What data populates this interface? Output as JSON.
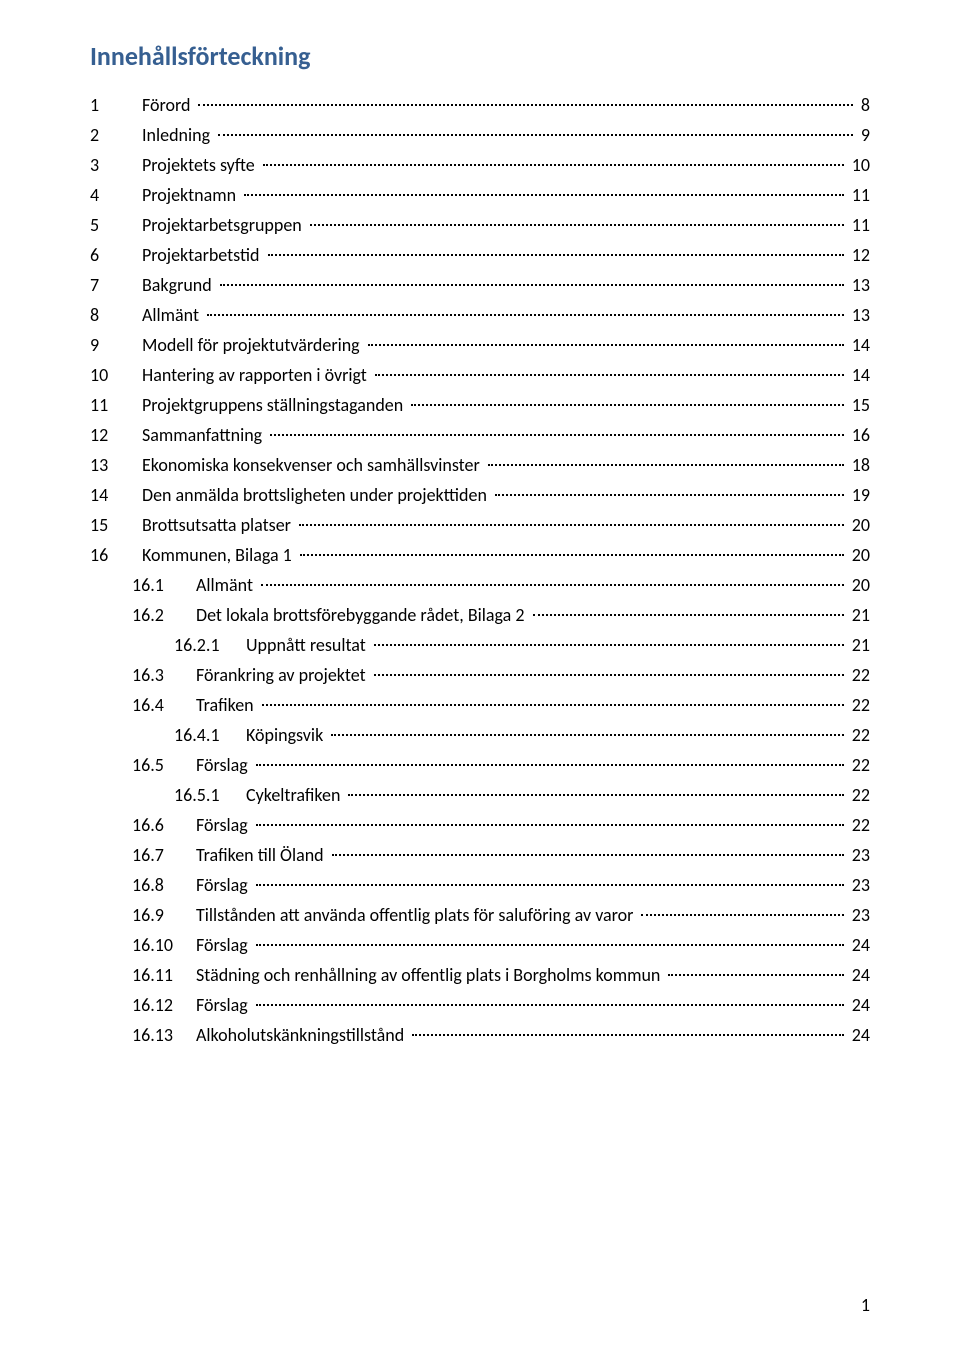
{
  "title": "Innehållsförteckning",
  "page_number": "1",
  "entries": [
    {
      "level": 1,
      "num": "1",
      "label": "Förord",
      "page": "8"
    },
    {
      "level": 1,
      "num": "2",
      "label": "Inledning",
      "page": "9"
    },
    {
      "level": 1,
      "num": "3",
      "label": "Projektets syfte",
      "page": "10"
    },
    {
      "level": 1,
      "num": "4",
      "label": "Projektnamn",
      "page": "11"
    },
    {
      "level": 1,
      "num": "5",
      "label": "Projektarbetsgruppen",
      "page": "11"
    },
    {
      "level": 1,
      "num": "6",
      "label": "Projektarbetstid",
      "page": "12"
    },
    {
      "level": 1,
      "num": "7",
      "label": "Bakgrund",
      "page": "13"
    },
    {
      "level": 1,
      "num": "8",
      "label": "Allmänt",
      "page": "13"
    },
    {
      "level": 1,
      "num": "9",
      "label": "Modell för projektutvärdering",
      "page": "14"
    },
    {
      "level": 1,
      "num": "10",
      "label": "Hantering av rapporten i övrigt",
      "page": "14"
    },
    {
      "level": 1,
      "num": "11",
      "label": "Projektgruppens ställningstaganden",
      "page": "15"
    },
    {
      "level": 1,
      "num": "12",
      "label": "Sammanfattning",
      "page": "16"
    },
    {
      "level": 1,
      "num": "13",
      "label": "Ekonomiska konsekvenser och samhällsvinster",
      "page": "18"
    },
    {
      "level": 1,
      "num": "14",
      "label": "Den anmälda brottsligheten under projekttiden",
      "page": "19"
    },
    {
      "level": 1,
      "num": "15",
      "label": "Brottsutsatta platser",
      "page": "20"
    },
    {
      "level": 1,
      "num": "16",
      "label": "Kommunen, Bilaga 1",
      "page": "20"
    },
    {
      "level": 2,
      "num": "16.1",
      "label": "Allmänt",
      "page": "20"
    },
    {
      "level": 2,
      "num": "16.2",
      "label": "Det lokala brottsförebyggande rådet, Bilaga 2",
      "page": "21"
    },
    {
      "level": 3,
      "num": "16.2.1",
      "label": "Uppnått resultat",
      "page": "21"
    },
    {
      "level": 2,
      "num": "16.3",
      "label": "Förankring av projektet",
      "page": "22"
    },
    {
      "level": 2,
      "num": "16.4",
      "label": "Trafiken",
      "page": "22"
    },
    {
      "level": 3,
      "num": "16.4.1",
      "label": "Köpingsvik",
      "page": "22"
    },
    {
      "level": 2,
      "num": "16.5",
      "label": "Förslag",
      "page": "22"
    },
    {
      "level": 3,
      "num": "16.5.1",
      "label": "Cykeltrafiken",
      "page": "22"
    },
    {
      "level": 2,
      "num": "16.6",
      "label": "Förslag",
      "page": "22"
    },
    {
      "level": 2,
      "num": "16.7",
      "label": "Trafiken till Öland",
      "page": "23"
    },
    {
      "level": 2,
      "num": "16.8",
      "label": "Förslag",
      "page": "23"
    },
    {
      "level": 2,
      "num": "16.9",
      "label": "Tillstånden att använda offentlig plats för saluföring av varor",
      "page": "23"
    },
    {
      "level": 2,
      "num": "16.10",
      "label": "Förslag",
      "page": "24"
    },
    {
      "level": 2,
      "num": "16.11",
      "label": "Städning och renhållning av offentlig plats i Borgholms kommun",
      "page": "24"
    },
    {
      "level": 2,
      "num": "16.12",
      "label": "Förslag",
      "page": "24"
    },
    {
      "level": 2,
      "num": "16.13",
      "label": "Alkoholutskänkningstillstånd",
      "page": "24"
    }
  ]
}
